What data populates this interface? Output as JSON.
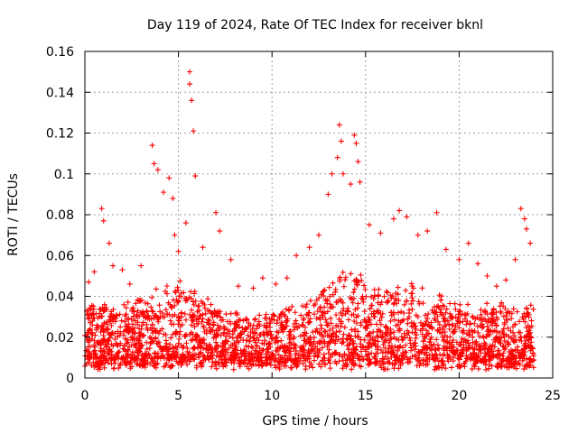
{
  "chart_data": {
    "type": "scatter",
    "title": "Day 119 of 2024, Rate Of TEC Index for receiver bknl",
    "xlabel": "GPS time / hours",
    "ylabel": "ROTI / TECUs",
    "xlim": [
      0,
      25
    ],
    "ylim": [
      0,
      0.16
    ],
    "x_ticks": [
      "0",
      "5",
      "10",
      "15",
      "20",
      "25"
    ],
    "y_ticks": [
      "0",
      "0.02",
      "0.04",
      "0.06",
      "0.08",
      "0.1",
      "0.12",
      "0.14",
      "0.16"
    ],
    "grid": true,
    "marker": "plus",
    "marker_color": "#ff0000",
    "series": [
      {
        "x": [
          0.2,
          0.5,
          0.9,
          1.0,
          1.3,
          1.5,
          2.0,
          2.4,
          3.0,
          3.6,
          3.7,
          3.9,
          4.2,
          4.5,
          4.7,
          4.8,
          5.0,
          5.4,
          5.6,
          5.6,
          5.7,
          5.8,
          5.9,
          6.3,
          7.0,
          7.2,
          7.8,
          8.2,
          9.0,
          9.5,
          10.2,
          10.8,
          11.3,
          12.0,
          12.5,
          13.0,
          13.2,
          13.5,
          13.6,
          13.7,
          13.8,
          14.2,
          14.4,
          14.5,
          14.6,
          14.7,
          15.2,
          15.8,
          16.5,
          16.8,
          17.2,
          17.8,
          18.3,
          18.8,
          19.3,
          20.0,
          20.5,
          21.0,
          21.5,
          22.0,
          22.5,
          23.0,
          23.3,
          23.5,
          23.6,
          23.8
        ],
        "y": [
          0.047,
          0.052,
          0.083,
          0.077,
          0.066,
          0.055,
          0.053,
          0.046,
          0.055,
          0.114,
          0.105,
          0.102,
          0.091,
          0.098,
          0.088,
          0.07,
          0.062,
          0.076,
          0.15,
          0.144,
          0.136,
          0.121,
          0.099,
          0.064,
          0.081,
          0.072,
          0.058,
          0.045,
          0.044,
          0.049,
          0.046,
          0.049,
          0.06,
          0.064,
          0.07,
          0.09,
          0.1,
          0.108,
          0.124,
          0.116,
          0.1,
          0.095,
          0.119,
          0.115,
          0.106,
          0.096,
          0.075,
          0.071,
          0.078,
          0.082,
          0.079,
          0.07,
          0.072,
          0.081,
          0.063,
          0.058,
          0.066,
          0.056,
          0.05,
          0.045,
          0.048,
          0.058,
          0.083,
          0.078,
          0.073,
          0.066
        ]
      }
    ],
    "dense_cloud": {
      "x_range": [
        0,
        24
      ],
      "baseline_min": 0.004,
      "typical_range": [
        0.01,
        0.045
      ]
    }
  }
}
